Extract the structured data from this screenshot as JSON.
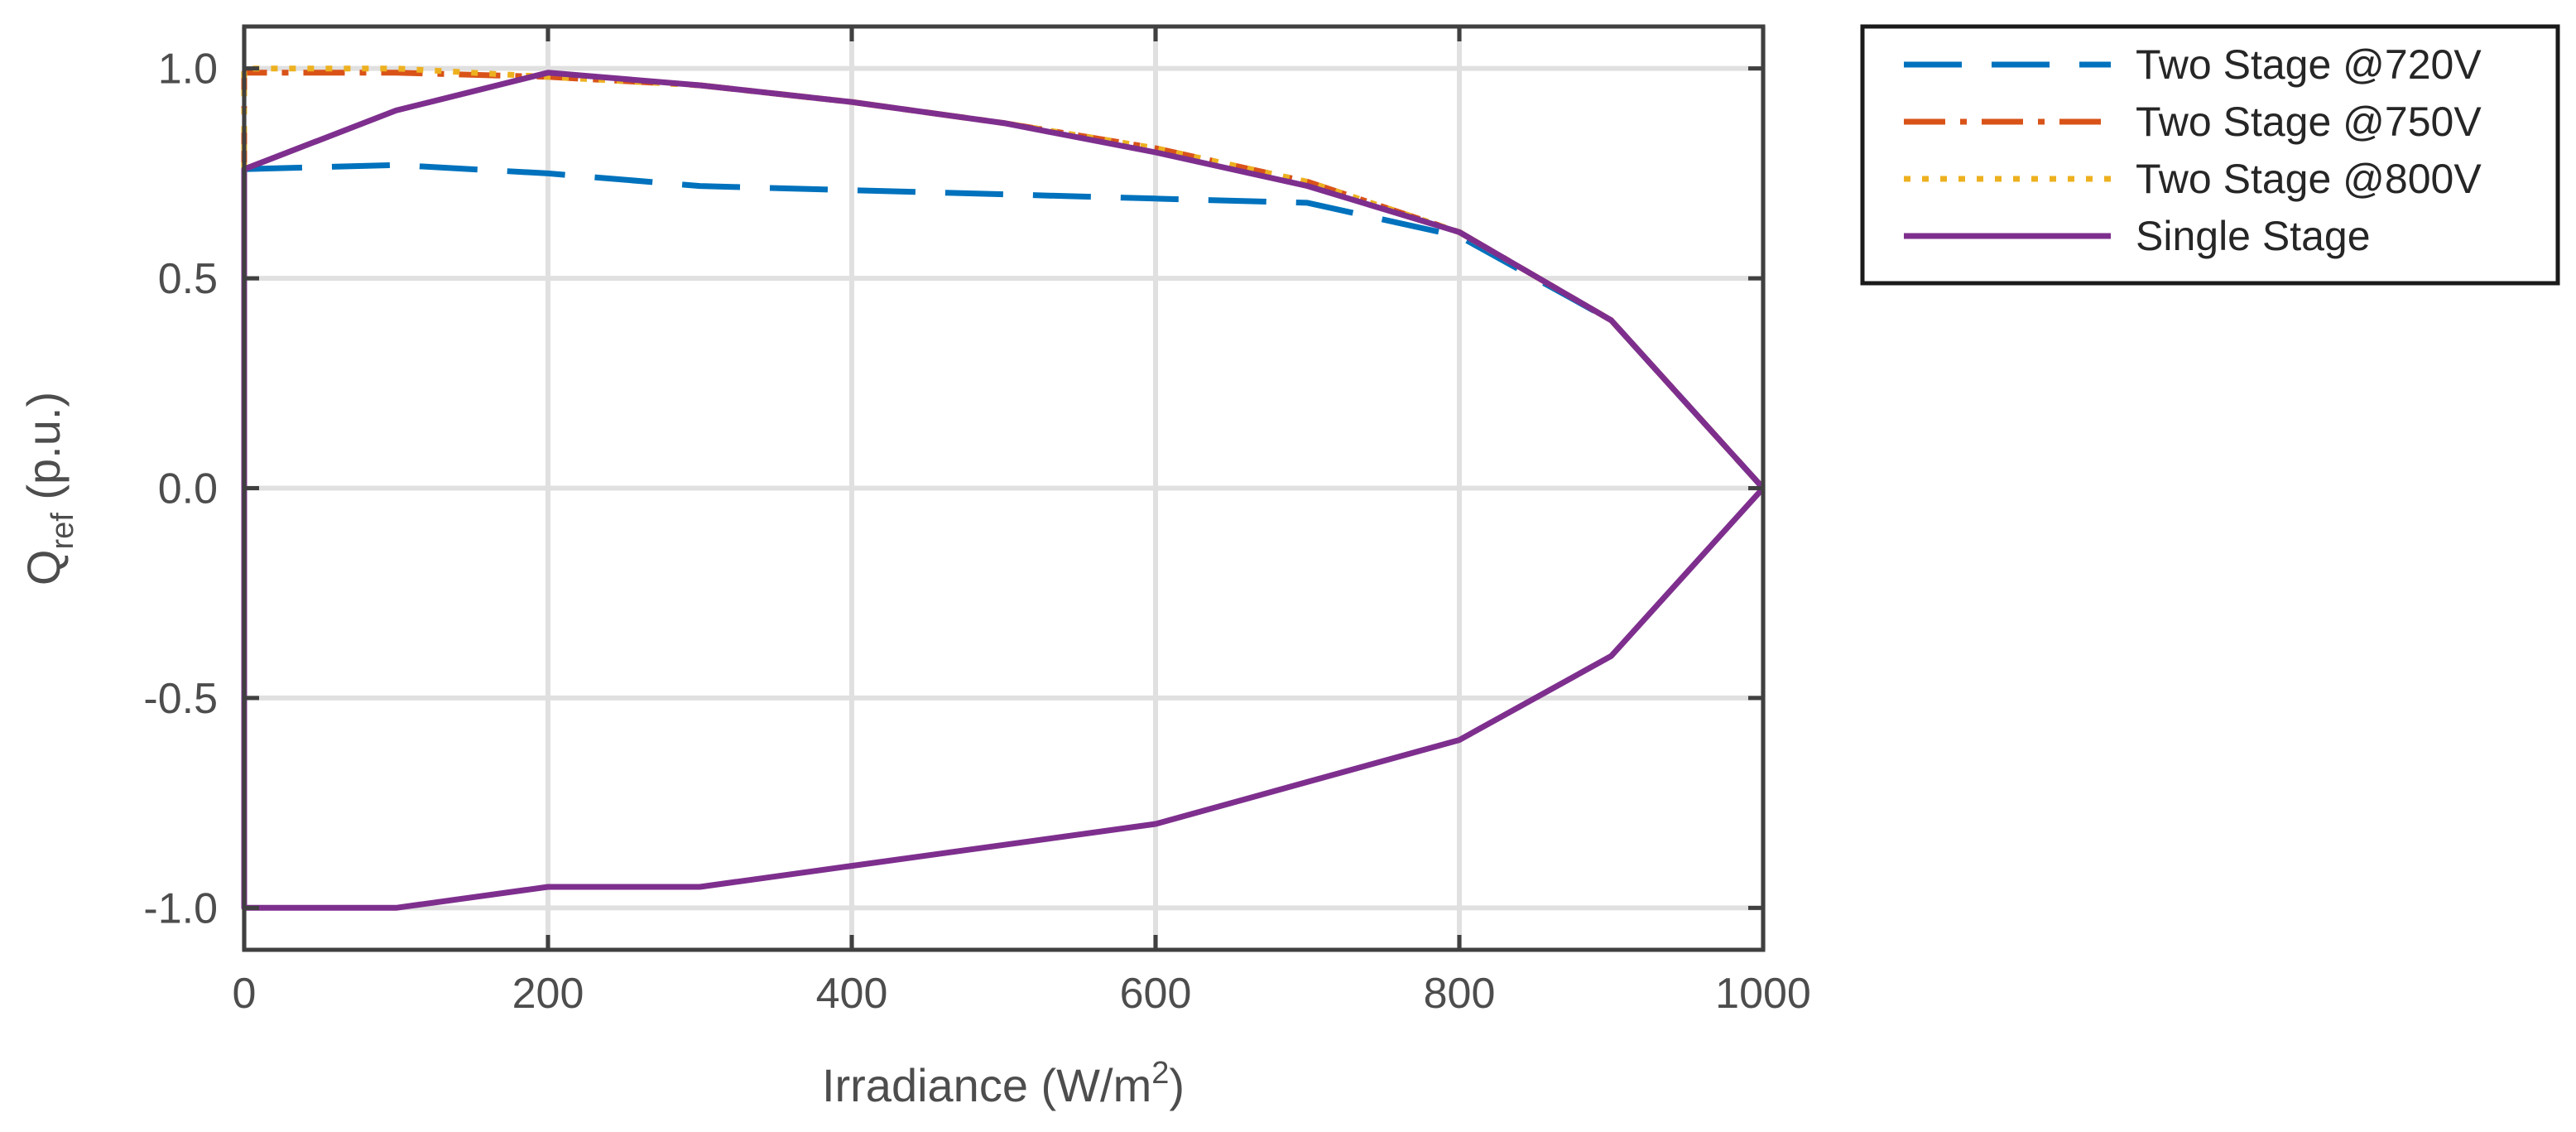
{
  "chart_data": {
    "type": "line",
    "xlabel": "Irradiance (W/m",
    "xlabel_sup": "2",
    "xlabel_tail": ")",
    "ylabel": "Q",
    "ylabel_sub": "ref",
    "ylabel_tail": " (p.u.)",
    "xlim": [
      0,
      1000
    ],
    "ylim": [
      -1.1,
      1.1
    ],
    "xticks": [
      0,
      200,
      400,
      600,
      800,
      1000
    ],
    "xtick_labels": [
      "0",
      "200",
      "400",
      "600",
      "800",
      "1000"
    ],
    "yticks": [
      -1.0,
      -0.5,
      0.0,
      0.5,
      1.0
    ],
    "ytick_labels": [
      "-1.0",
      "-0.5",
      "0.0",
      "0.5",
      "1.0"
    ],
    "grid": true,
    "legend_position": "outside-top-right",
    "series": [
      {
        "name": "Two Stage @720V",
        "color": "#0072BD",
        "style": "dashed",
        "x": [
          0,
          0,
          100,
          200,
          300,
          400,
          500,
          600,
          700,
          800,
          900,
          1000
        ],
        "y": [
          0.76,
          0.76,
          0.77,
          0.75,
          0.72,
          0.71,
          0.7,
          0.69,
          0.68,
          0.6,
          0.4,
          0
        ]
      },
      {
        "name": "Two Stage @750V",
        "color": "#D95319",
        "style": "dashdot",
        "x": [
          0,
          0,
          100,
          200,
          300,
          400,
          500,
          600,
          700,
          800,
          900,
          1000
        ],
        "y": [
          0.76,
          0.99,
          0.99,
          0.98,
          0.96,
          0.92,
          0.87,
          0.81,
          0.73,
          0.61,
          0.4,
          0
        ]
      },
      {
        "name": "Two Stage @800V",
        "color": "#EDB120",
        "style": "dotted",
        "x": [
          0,
          0,
          100,
          200,
          300,
          400,
          500,
          600,
          700,
          800,
          900,
          1000
        ],
        "y": [
          0.76,
          1.0,
          1.0,
          0.98,
          0.96,
          0.92,
          0.87,
          0.81,
          0.73,
          0.61,
          0.4,
          0
        ]
      },
      {
        "name": "Single Stage",
        "color": "#7E2F8E",
        "style": "solid",
        "x": [
          1000,
          900,
          800,
          700,
          600,
          500,
          400,
          300,
          200,
          100,
          0,
          0,
          100,
          200,
          300,
          400,
          500,
          600,
          700,
          800,
          900,
          1000
        ],
        "y": [
          0,
          0.4,
          0.61,
          0.72,
          0.8,
          0.87,
          0.92,
          0.96,
          0.99,
          0.9,
          0.76,
          -1.0,
          -1.0,
          -0.95,
          -0.95,
          -0.9,
          -0.85,
          -0.8,
          -0.7,
          -0.6,
          -0.4,
          0
        ]
      }
    ]
  }
}
